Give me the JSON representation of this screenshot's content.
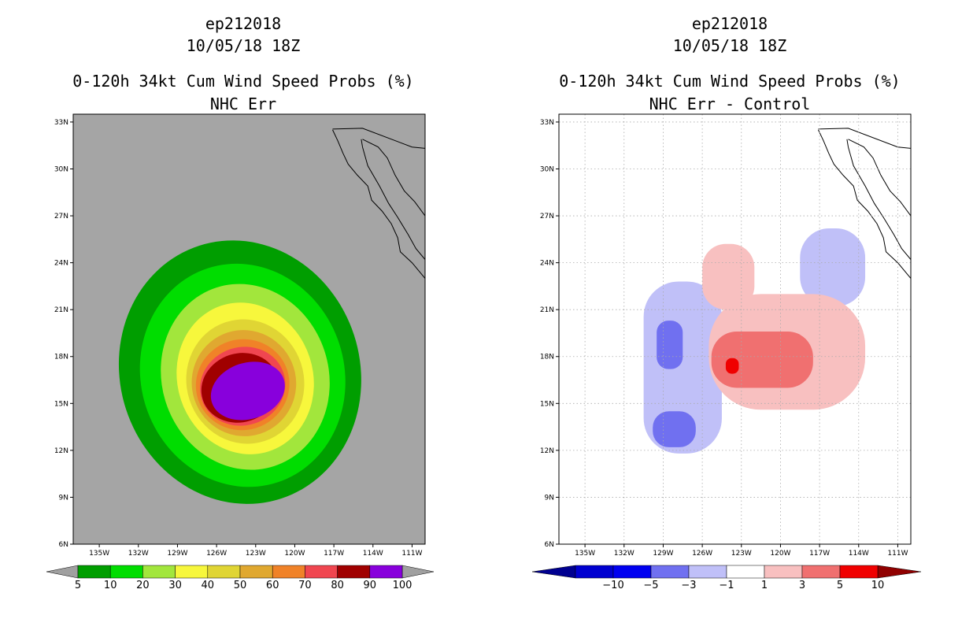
{
  "chart_data": [
    {
      "type": "heatmap",
      "storm_id": "ep212018",
      "datetime": "10/05/18 18Z",
      "title": "0-120h 34kt Cum Wind Speed Probs (%)",
      "subtitle": "NHC Err",
      "xlabel": "",
      "ylabel": "",
      "xlim": [
        -137,
        -110
      ],
      "ylim": [
        6,
        33.5
      ],
      "lon_ticks": [
        -135,
        -132,
        -129,
        -126,
        -123,
        -120,
        -117,
        -114,
        -111
      ],
      "lon_tick_labels": [
        "135W",
        "132W",
        "129W",
        "126W",
        "123W",
        "120W",
        "117W",
        "114W",
        "111W"
      ],
      "lat_ticks": [
        6,
        9,
        12,
        15,
        18,
        21,
        24,
        27,
        30,
        33
      ],
      "lat_tick_labels": [
        "6N",
        "9N",
        "12N",
        "15N",
        "18N",
        "21N",
        "24N",
        "27N",
        "30N",
        "33N"
      ],
      "grid": false,
      "colorbar": {
        "levels": [
          "5",
          "10",
          "20",
          "30",
          "40",
          "50",
          "60",
          "70",
          "80",
          "90",
          "100"
        ],
        "colors": [
          "#009e00",
          "#00dd00",
          "#a2e63c",
          "#f7f73c",
          "#e0d534",
          "#e0a830",
          "#f08228",
          "#f04650",
          "#a00000",
          "#8800dc"
        ],
        "under_color": "#a0a0a0",
        "over_color": "#a0a0a0"
      },
      "contours": [
        {
          "level": "5",
          "center": [
            -124.2,
            17.0
          ],
          "radius_x": 9.2,
          "radius_y": 8.5
        },
        {
          "level": "10",
          "center": [
            -124.0,
            16.8
          ],
          "radius_x": 7.8,
          "radius_y": 7.2
        },
        {
          "level": "20",
          "center": [
            -123.8,
            16.7
          ],
          "radius_x": 6.4,
          "radius_y": 6.0
        },
        {
          "level": "30",
          "center": [
            -123.8,
            16.6
          ],
          "radius_x": 5.2,
          "radius_y": 4.9
        },
        {
          "level": "40",
          "center": [
            -123.8,
            16.4
          ],
          "radius_x": 4.5,
          "radius_y": 4.0
        },
        {
          "level": "50",
          "center": [
            -123.9,
            16.3
          ],
          "radius_x": 4.0,
          "radius_y": 3.4
        },
        {
          "level": "60",
          "center": [
            -124.0,
            16.2
          ],
          "radius_x": 3.6,
          "radius_y": 2.9
        },
        {
          "level": "70",
          "center": [
            -124.0,
            16.1
          ],
          "radius_x": 3.3,
          "radius_y": 2.5
        },
        {
          "level": "80",
          "center": [
            -124.2,
            16.0
          ],
          "radius_x": 3.0,
          "radius_y": 2.2
        },
        {
          "level": "90",
          "center": [
            -123.6,
            15.8
          ],
          "radius_x": 2.9,
          "radius_y": 1.8
        }
      ]
    },
    {
      "type": "heatmap",
      "storm_id": "ep212018",
      "datetime": "10/05/18 18Z",
      "title": "0-120h 34kt Cum Wind Speed Probs (%)",
      "subtitle": "NHC Err - Control",
      "xlabel": "",
      "ylabel": "",
      "xlim": [
        -137,
        -110
      ],
      "ylim": [
        6,
        33.5
      ],
      "lon_ticks": [
        -135,
        -132,
        -129,
        -126,
        -123,
        -120,
        -117,
        -114,
        -111
      ],
      "lon_tick_labels": [
        "135W",
        "132W",
        "129W",
        "126W",
        "123W",
        "120W",
        "117W",
        "114W",
        "111W"
      ],
      "lat_ticks": [
        6,
        9,
        12,
        15,
        18,
        21,
        24,
        27,
        30,
        33
      ],
      "lat_tick_labels": [
        "6N",
        "9N",
        "12N",
        "15N",
        "18N",
        "21N",
        "24N",
        "27N",
        "30N",
        "33N"
      ],
      "grid": true,
      "colorbar": {
        "levels": [
          "−10",
          "−5",
          "−3",
          "−1",
          "1",
          "3",
          "5",
          "10"
        ],
        "colors": [
          "#0000d0",
          "#0000f0",
          "#7070f0",
          "#c0c0f8",
          "#ffffff",
          "#f8c0c0",
          "#f07070",
          "#f00000"
        ],
        "under_color": "#000090",
        "over_color": "#900000"
      },
      "anomaly_regions": [
        {
          "sign": "negative",
          "range": "-3 to -1",
          "lon": [
            -130.5,
            -124.5
          ],
          "lat": [
            11.8,
            22.8
          ]
        },
        {
          "sign": "negative",
          "range": "-5 to -3",
          "lon": [
            -129.5,
            -127.5
          ],
          "lat": [
            17.2,
            20.3
          ]
        },
        {
          "sign": "negative",
          "range": "-5 to -3",
          "lon": [
            -129.8,
            -126.5
          ],
          "lat": [
            12.2,
            14.5
          ]
        },
        {
          "sign": "negative",
          "range": "-3 to -1",
          "lon": [
            -118.5,
            -113.5
          ],
          "lat": [
            21.2,
            26.2
          ]
        },
        {
          "sign": "positive",
          "range": "1 to 3",
          "lon": [
            -125.5,
            -113.5
          ],
          "lat": [
            14.6,
            22.0
          ]
        },
        {
          "sign": "positive",
          "range": "1 to 3",
          "lon": [
            -126.0,
            -122.0
          ],
          "lat": [
            21.0,
            25.2
          ]
        },
        {
          "sign": "positive",
          "range": "3 to 5",
          "lon": [
            -125.3,
            -117.5
          ],
          "lat": [
            16.0,
            19.6
          ]
        },
        {
          "sign": "positive",
          "range": "5 to 10",
          "lon": [
            -124.2,
            -123.2
          ],
          "lat": [
            16.9,
            17.9
          ]
        }
      ]
    }
  ]
}
